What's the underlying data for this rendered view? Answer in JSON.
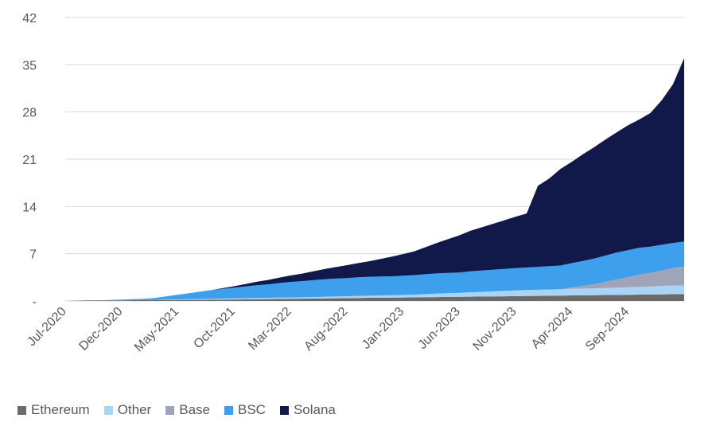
{
  "chart_data": {
    "type": "area",
    "stacked": true,
    "title": "",
    "xlabel": "",
    "ylabel": "",
    "ylim": [
      0,
      42
    ],
    "yticks": [
      0,
      7,
      14,
      21,
      28,
      35,
      42
    ],
    "ytick_labels": [
      "-",
      "7",
      "14",
      "21",
      "28",
      "35",
      "42"
    ],
    "xtick_labels": [
      "Jul-2020",
      "Dec-2020",
      "May-2021",
      "Oct-2021",
      "Mar-2022",
      "Aug-2022",
      "Jan-2023",
      "Jun-2023",
      "Nov-2023",
      "Apr-2024",
      "Sep-2024"
    ],
    "x": [
      "Jul-2020",
      "Aug-2020",
      "Sep-2020",
      "Oct-2020",
      "Nov-2020",
      "Dec-2020",
      "Jan-2021",
      "Feb-2021",
      "Mar-2021",
      "Apr-2021",
      "May-2021",
      "Jun-2021",
      "Jul-2021",
      "Aug-2021",
      "Sep-2021",
      "Oct-2021",
      "Nov-2021",
      "Dec-2021",
      "Jan-2022",
      "Feb-2022",
      "Mar-2022",
      "Apr-2022",
      "May-2022",
      "Jun-2022",
      "Jul-2022",
      "Aug-2022",
      "Sep-2022",
      "Oct-2022",
      "Nov-2022",
      "Dec-2022",
      "Jan-2023",
      "Feb-2023",
      "Mar-2023",
      "Apr-2023",
      "May-2023",
      "Jun-2023",
      "Jul-2023",
      "Aug-2023",
      "Sep-2023",
      "Oct-2023",
      "Nov-2023",
      "Dec-2023",
      "Jan-2024",
      "Feb-2024",
      "Mar-2024",
      "Apr-2024",
      "May-2024",
      "Jun-2024",
      "Jul-2024",
      "Aug-2024",
      "Sep-2024",
      "Oct-2024",
      "Nov-2024",
      "Dec-2024",
      "Jan-2025",
      "Feb-2025"
    ],
    "legend_position": "bottom-left",
    "grid": "horizontal",
    "series": [
      {
        "name": "Ethereum",
        "color": "#6b6b6b",
        "values": [
          0,
          0.05,
          0.1,
          0.1,
          0.1,
          0.1,
          0.12,
          0.13,
          0.14,
          0.15,
          0.15,
          0.16,
          0.17,
          0.18,
          0.2,
          0.22,
          0.24,
          0.26,
          0.28,
          0.3,
          0.32,
          0.34,
          0.36,
          0.38,
          0.4,
          0.42,
          0.45,
          0.47,
          0.49,
          0.5,
          0.52,
          0.54,
          0.56,
          0.58,
          0.6,
          0.62,
          0.64,
          0.66,
          0.68,
          0.7,
          0.72,
          0.74,
          0.76,
          0.78,
          0.8,
          0.82,
          0.84,
          0.86,
          0.88,
          0.9,
          0.92,
          0.94,
          0.96,
          0.98,
          1.0,
          1.0
        ]
      },
      {
        "name": "Other",
        "color": "#a9d4f5",
        "values": [
          0,
          0,
          0,
          0,
          0,
          0,
          0,
          0,
          0.02,
          0.05,
          0.08,
          0.1,
          0.12,
          0.14,
          0.15,
          0.16,
          0.17,
          0.18,
          0.19,
          0.2,
          0.2,
          0.2,
          0.22,
          0.24,
          0.26,
          0.28,
          0.3,
          0.32,
          0.34,
          0.36,
          0.38,
          0.4,
          0.45,
          0.5,
          0.55,
          0.6,
          0.65,
          0.7,
          0.75,
          0.8,
          0.85,
          0.88,
          0.9,
          0.92,
          0.95,
          0.98,
          1.0,
          1.02,
          1.05,
          1.08,
          1.1,
          1.15,
          1.2,
          1.25,
          1.3,
          1.3
        ]
      },
      {
        "name": "Base",
        "color": "#a0a4b8",
        "values": [
          0,
          0,
          0,
          0,
          0,
          0,
          0,
          0,
          0,
          0,
          0,
          0,
          0,
          0,
          0,
          0,
          0,
          0,
          0,
          0,
          0,
          0,
          0,
          0,
          0,
          0,
          0,
          0,
          0,
          0,
          0,
          0,
          0,
          0,
          0,
          0,
          0,
          0,
          0,
          0,
          0,
          0,
          0,
          0,
          0,
          0.2,
          0.4,
          0.6,
          0.9,
          1.2,
          1.5,
          1.8,
          2.0,
          2.3,
          2.6,
          2.8
        ]
      },
      {
        "name": "BSC",
        "color": "#3ea0ec",
        "values": [
          0,
          0,
          0,
          0,
          0.05,
          0.1,
          0.15,
          0.2,
          0.3,
          0.5,
          0.7,
          0.9,
          1.1,
          1.3,
          1.45,
          1.6,
          1.75,
          1.9,
          2.0,
          2.15,
          2.3,
          2.4,
          2.5,
          2.6,
          2.65,
          2.7,
          2.75,
          2.8,
          2.8,
          2.8,
          2.85,
          2.9,
          2.95,
          3.0,
          3.0,
          3.0,
          3.1,
          3.15,
          3.2,
          3.25,
          3.3,
          3.35,
          3.4,
          3.45,
          3.5,
          3.6,
          3.7,
          3.8,
          3.9,
          4.0,
          4.0,
          4.0,
          3.9,
          3.8,
          3.7,
          3.7
        ]
      },
      {
        "name": "Solana",
        "color": "#10194a",
        "values": [
          0,
          0,
          0,
          0,
          0,
          0,
          0,
          0,
          0,
          0,
          0,
          0,
          0,
          0,
          0.1,
          0.2,
          0.35,
          0.5,
          0.65,
          0.8,
          0.95,
          1.1,
          1.3,
          1.5,
          1.7,
          1.9,
          2.1,
          2.3,
          2.6,
          2.9,
          3.2,
          3.5,
          4.0,
          4.5,
          5.0,
          5.5,
          6.0,
          6.4,
          6.8,
          7.2,
          7.6,
          8.0,
          12.0,
          13.0,
          14.3,
          15.0,
          15.8,
          16.5,
          17.2,
          17.8,
          18.5,
          19.0,
          19.8,
          21.4,
          23.5,
          27.2
        ]
      }
    ]
  }
}
